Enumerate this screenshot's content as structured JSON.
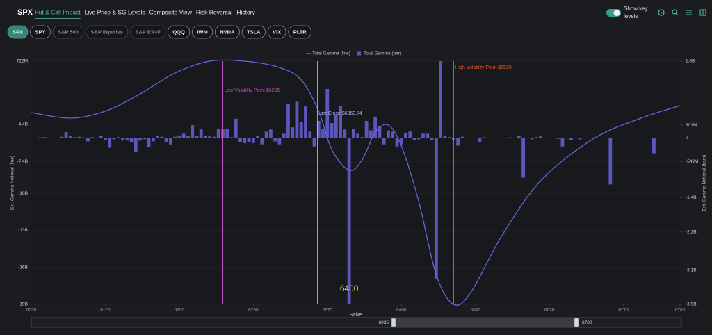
{
  "header": {
    "title": "SPX",
    "tabs": [
      "Put & Call Impact",
      "Live Price & SG Levels",
      "Composite View",
      "Risk Reversal",
      "History"
    ],
    "active_tab": 0,
    "toggle_label": [
      "Show key",
      "levels"
    ]
  },
  "tickers": {
    "items": [
      "SPX",
      "SPY",
      "S&P 500",
      "S&P Equities",
      "S&P ES+F",
      "QQQ",
      "IWM",
      "NVDA",
      "TSLA",
      "VIX",
      "PLTR"
    ],
    "active": 0,
    "disabled": [
      2,
      3,
      4
    ]
  },
  "chart_data": {
    "type": "combo",
    "x_label": "Strike",
    "y_label": "Est. Gamma Notional (line)",
    "y2_label": "Est. Gamma Notional (bars)",
    "xlim": [
      6035,
      6780
    ],
    "xticks": [
      6035,
      6120,
      6205,
      6290,
      6375,
      6460,
      6545,
      6630,
      6715,
      6780
    ],
    "ylim": [
      -19000000000,
      722000000
    ],
    "yticks": [
      {
        "value": 722000000,
        "label": "722M"
      },
      {
        "value": -4400000000,
        "label": "-4.4B"
      },
      {
        "value": -7400000000,
        "label": "-7.4B"
      },
      {
        "value": -10000000000,
        "label": "-10B"
      },
      {
        "value": -13000000000,
        "label": "-13B"
      },
      {
        "value": -16000000000,
        "label": "-16B"
      },
      {
        "value": -19000000000,
        "label": "-19B"
      }
    ],
    "y2lim": [
      -3900000000,
      1800000000
    ],
    "y2ticks": [
      {
        "value": 1800000000,
        "label": "1.8B"
      },
      {
        "value": 301000000,
        "label": "301M"
      },
      0,
      {
        "value": -549000000,
        "label": "-549M"
      },
      {
        "value": -1400000000,
        "label": "-1.4B"
      },
      {
        "value": -2200000000,
        "label": "-2.2B"
      },
      {
        "value": -3100000000,
        "label": "-3.1B"
      },
      {
        "value": -3900000000,
        "label": "-3.9B"
      }
    ],
    "grid": true,
    "series": [
      {
        "name": "Total Gamma (line)",
        "type": "line",
        "axis": "y",
        "color": "#6a63dc",
        "x": [
          6035,
          6080,
          6120,
          6160,
          6200,
          6240,
          6280,
          6320,
          6345,
          6365,
          6380,
          6400,
          6415,
          6430,
          6445,
          6460,
          6480,
          6500,
          6520,
          6540,
          6575,
          6620,
          6680,
          6735,
          6780
        ],
        "values": [
          -3450000000.0,
          -3900000000.0,
          -3330000000.0,
          -1930000000.0,
          -240000000.0,
          720000000.0,
          720000000.0,
          210000000.0,
          -800000000.0,
          -3330000000.0,
          -6430000000.0,
          -8120000000.0,
          -7280000000.0,
          -5030000000.0,
          -4460000000.0,
          -6150000000.0,
          -10660000000.0,
          -16580000000.0,
          -19000000000.0,
          -17990000000.0,
          -13480000000.0,
          -8970000000.0,
          -5590000000.0,
          -3900000000.0,
          -2880000000.0
        ]
      },
      {
        "name": "Total Gamma (bar)",
        "type": "bar",
        "axis": "y2",
        "color": "#5b57bd",
        "x": [
          6035,
          6040,
          6045,
          6050,
          6055,
          6060,
          6065,
          6070,
          6075,
          6080,
          6085,
          6090,
          6095,
          6100,
          6105,
          6110,
          6115,
          6120,
          6125,
          6130,
          6135,
          6140,
          6145,
          6150,
          6155,
          6160,
          6165,
          6170,
          6175,
          6180,
          6185,
          6190,
          6195,
          6200,
          6205,
          6210,
          6215,
          6220,
          6225,
          6230,
          6235,
          6240,
          6245,
          6250,
          6255,
          6260,
          6265,
          6270,
          6275,
          6280,
          6285,
          6290,
          6295,
          6300,
          6305,
          6310,
          6315,
          6320,
          6325,
          6330,
          6335,
          6340,
          6345,
          6350,
          6355,
          6360,
          6365,
          6370,
          6375,
          6380,
          6385,
          6390,
          6395,
          6400,
          6405,
          6410,
          6415,
          6420,
          6425,
          6430,
          6435,
          6440,
          6445,
          6450,
          6455,
          6460,
          6465,
          6470,
          6475,
          6480,
          6485,
          6490,
          6495,
          6500,
          6505,
          6510,
          6515,
          6520,
          6525,
          6530,
          6535,
          6540,
          6545,
          6550,
          6555,
          6560,
          6565,
          6570,
          6575,
          6580,
          6585,
          6590,
          6595,
          6600,
          6605,
          6610,
          6615,
          6620,
          6625,
          6630,
          6635,
          6640,
          6645,
          6650,
          6655,
          6660,
          6665,
          6670,
          6675,
          6680,
          6685,
          6690,
          6695,
          6700,
          6705,
          6710,
          6715,
          6720,
          6725,
          6730,
          6735,
          6740,
          6745,
          6750,
          6755,
          6760,
          6765,
          6770,
          6775,
          6780
        ],
        "values": [
          10000000.0,
          -5000000.0,
          15000000.0,
          20000000.0,
          10000000.0,
          -10000000.0,
          5000000.0,
          30000000.0,
          140000000.0,
          40000000.0,
          20000000.0,
          30000000.0,
          15000000.0,
          -80000000.0,
          20000000.0,
          10000000.0,
          50000000.0,
          -40000000.0,
          -230000000.0,
          -30000000.0,
          20000000.0,
          -60000000.0,
          -40000000.0,
          -100000000.0,
          -330000000.0,
          -60000000.0,
          -30000000.0,
          -220000000.0,
          -80000000.0,
          60000000.0,
          30000000.0,
          -90000000.0,
          -150000000.0,
          30000000.0,
          60000000.0,
          100000000.0,
          40000000.0,
          300000000.0,
          50000000.0,
          200000000.0,
          60000000.0,
          40000000.0,
          30000000.0,
          220000000.0,
          200000000.0,
          220000000.0,
          20000000.0,
          450000000.0,
          -100000000.0,
          -120000000.0,
          -100000000.0,
          -120000000.0,
          60000000.0,
          -150000000.0,
          150000000.0,
          200000000.0,
          -80000000.0,
          -150000000.0,
          100000000.0,
          800000000.0,
          250000000.0,
          850000000.0,
          380000000.0,
          750000000.0,
          150000000.0,
          -200000000.0,
          400000000.0,
          220000000.0,
          1150000000.0,
          350000000.0,
          550000000.0,
          750000000.0,
          200000000.0,
          -3900000000.0,
          220000000.0,
          100000000.0,
          20000000.0,
          400000000.0,
          180000000.0,
          500000000.0,
          280000000.0,
          -150000000.0,
          180000000.0,
          150000000.0,
          -200000000.0,
          -150000000.0,
          120000000.0,
          150000000.0,
          -50000000.0,
          -30000000.0,
          100000000.0,
          100000000.0,
          -50000000.0,
          -3300000000.0,
          1800000000.0,
          60000000.0,
          20000000.0,
          -40000000.0,
          -180000000.0,
          30000000.0,
          10000000.0,
          5000000.0,
          10000000.0,
          -100000000.0,
          20000000.0,
          10000000.0,
          5000000.0,
          -5000000.0,
          10000000.0,
          -10000000.0,
          15000000.0,
          5000000.0,
          60000000.0,
          -930000000.0,
          10000000.0,
          -30000000.0,
          20000000.0,
          40000000.0,
          -10000000.0,
          10000000.0,
          5000000.0,
          -20000000.0,
          -200000000.0,
          10000000.0,
          -40000000.0,
          10000000.0,
          -30000000.0,
          5000000.0,
          10000000.0,
          10000000.0,
          5000000.0,
          10000000.0,
          -5000000.0,
          -1090000000.0,
          10000000.0,
          5000000.0,
          -5000000.0,
          10000000.0,
          5000000.0,
          -10000000.0,
          5000000.0,
          10000000.0,
          5000000.0,
          -360000000.0,
          5000000.0,
          -5000000.0,
          10000000.0,
          5000000.0,
          5000000.0,
          5000000.0
        ]
      }
    ],
    "key_levels": [
      {
        "label": "Low Volatility Point $6255",
        "x": 6255,
        "color": "#c44fc4"
      },
      {
        "label": "Last Close $6363.74",
        "x": 6363.74,
        "color": "#a9b6ee"
      },
      {
        "label": "High Volatility Point $6520",
        "x": 6520,
        "color": "#e4572e"
      }
    ],
    "annotation": {
      "text": "6400",
      "x": 6400
    },
    "slider": {
      "min": 6035,
      "max": 6780
    }
  }
}
